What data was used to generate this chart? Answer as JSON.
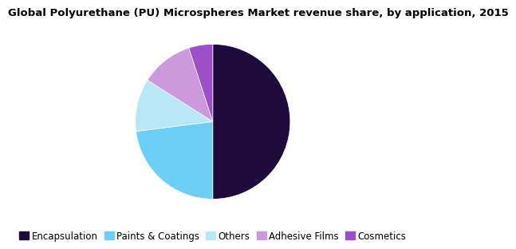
{
  "title": "Global Polyurethane (PU) Microspheres Market revenue share, by application, 2015",
  "slices": [
    {
      "label": "Encapsulation",
      "value": 50,
      "color": "#1f0a3c"
    },
    {
      "label": "Paints & Coatings",
      "value": 23,
      "color": "#6dcff6"
    },
    {
      "label": "Others",
      "value": 11,
      "color": "#b8e8f8"
    },
    {
      "label": "Adhesive Films",
      "value": 11,
      "color": "#cc99dd"
    },
    {
      "label": "Cosmetics",
      "value": 5,
      "color": "#9b4fc8"
    }
  ],
  "start_angle": 90,
  "title_fontsize": 9.5,
  "legend_fontsize": 8.5,
  "background_color": "#ffffff"
}
